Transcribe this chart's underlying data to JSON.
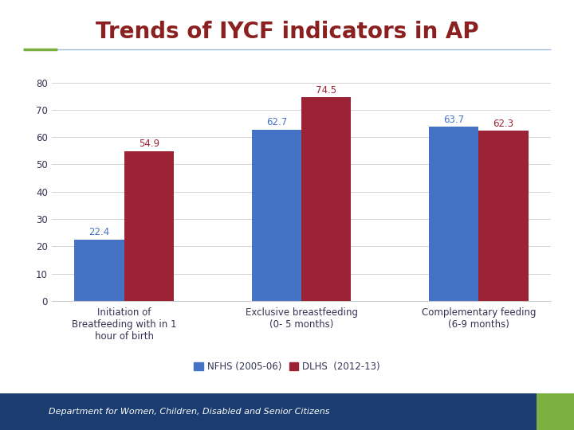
{
  "title": "Trends of IYCF indicators in AP",
  "title_color": "#8B2020",
  "title_fontsize": 20,
  "categories": [
    "Initiation of\nBreatfeeding with in 1\nhour of birth",
    "Exclusive breastfeeding\n(0- 5 months)",
    "Complementary feeding\n(6-9 months)"
  ],
  "nfhs_values": [
    22.4,
    62.7,
    63.7
  ],
  "dlhs_values": [
    54.9,
    74.5,
    62.3
  ],
  "nfhs_color": "#4472C4",
  "dlhs_color": "#9B2335",
  "bar_width": 0.28,
  "ylim": [
    0,
    85
  ],
  "yticks": [
    0,
    10,
    20,
    30,
    40,
    50,
    60,
    70,
    80
  ],
  "legend_nfhs": "NFHS (2005-06)",
  "legend_dlhs": "DLHS  (2012-13)",
  "value_fontsize": 8.5,
  "axis_label_fontsize": 8.5,
  "legend_fontsize": 8.5,
  "bg_color": "#FFFFFF",
  "footer_bg_color": "#1A3C6E",
  "footer_text": "Department for Women, Children, Disabled and Senior Citizens",
  "green_accent_color": "#7AB040",
  "separator_green_color": "#7AB040",
  "separator_blue_color": "#A0BADC",
  "tick_color": "#333355",
  "value_nfhs_color": "#4472C4",
  "value_dlhs_color": "#9B2335"
}
